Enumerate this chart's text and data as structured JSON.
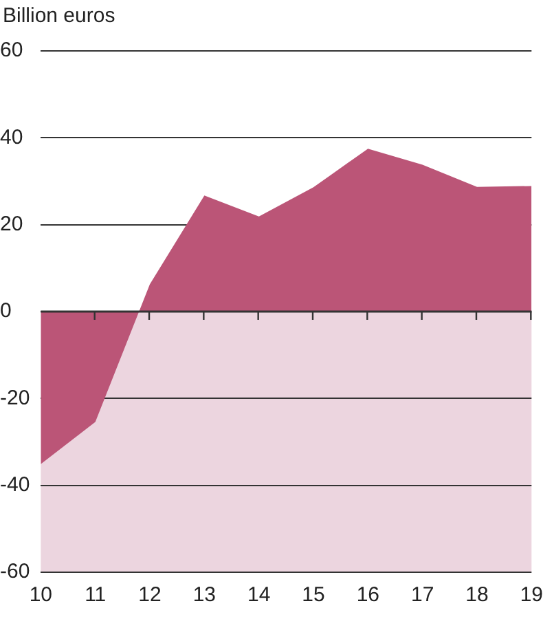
{
  "chart_data": {
    "type": "area",
    "ylabel": "Billion euros",
    "categories": [
      "10",
      "11",
      "12",
      "13",
      "14",
      "15",
      "16",
      "17",
      "18",
      "19"
    ],
    "series": [
      {
        "color": "#bb5577",
        "values": [
          -35.1,
          -25.4,
          6.3,
          26.7,
          21.9,
          28.6,
          37.5,
          33.8,
          28.7,
          28.9
        ]
      }
    ],
    "ylim": [
      -60,
      60
    ],
    "yticks": [
      -60,
      -40,
      -20,
      0,
      20,
      40,
      60
    ],
    "bands": [
      {
        "axis": "y",
        "from": -60,
        "to": 0,
        "color": "#ecd5df"
      }
    ],
    "grid": "y",
    "legend": false
  }
}
